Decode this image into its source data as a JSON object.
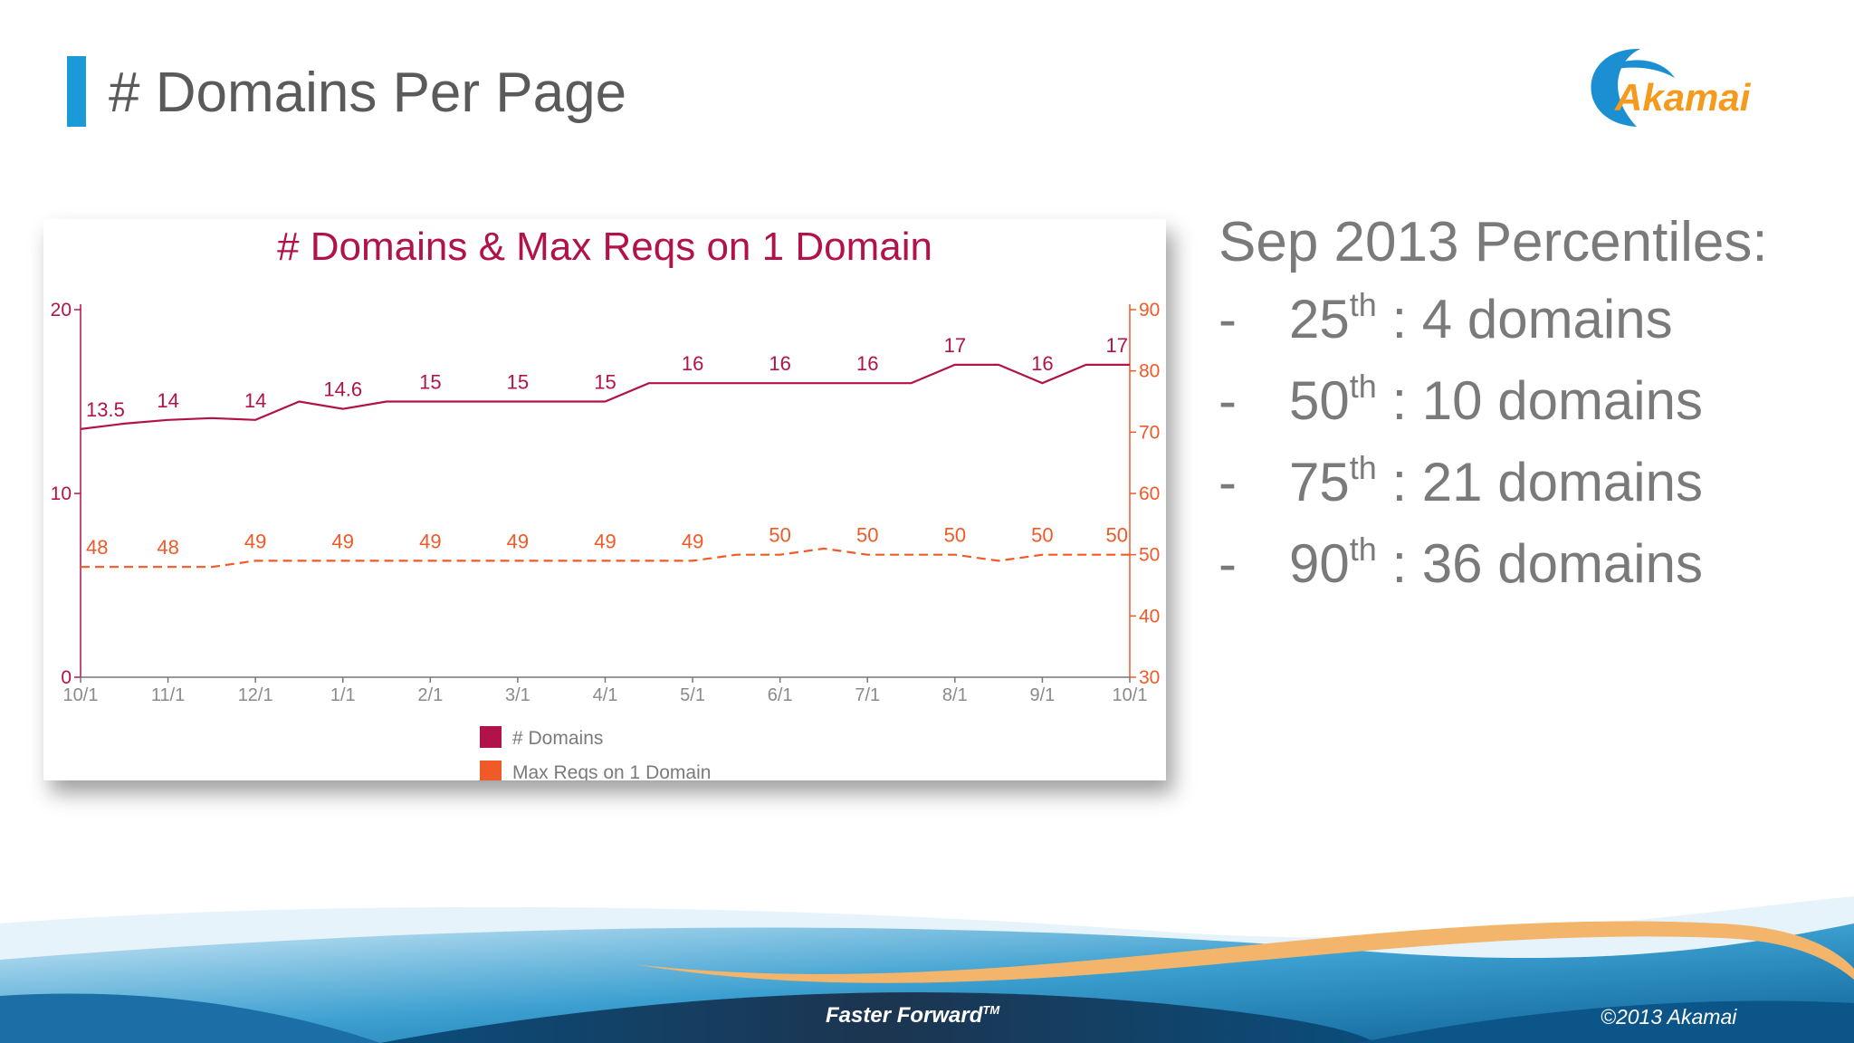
{
  "slide": {
    "title": "# Domains Per Page",
    "accent_color": "#1a9ad6",
    "logo_text": "Akamai",
    "logo_colors": {
      "swoosh": "#1b8fd2",
      "text": "#f49b1d"
    }
  },
  "percentiles": {
    "heading": "Sep 2013 Percentiles:",
    "items": [
      {
        "dash": "-",
        "ordinal_num": "25",
        "ordinal_suffix": "th",
        "rest": " : 4 domains"
      },
      {
        "dash": "-",
        "ordinal_num": "50",
        "ordinal_suffix": "th",
        "rest": " : 10 domains"
      },
      {
        "dash": "-",
        "ordinal_num": "75",
        "ordinal_suffix": "th",
        "rest": " : 21 domains"
      },
      {
        "dash": "-",
        "ordinal_num": "90",
        "ordinal_suffix": "th",
        "rest": " : 36 domains"
      }
    ]
  },
  "footer": {
    "tagline": "Faster Forward",
    "tagline_mark": "TM",
    "copyright": "©2013 Akamai"
  },
  "chart_data": {
    "type": "line",
    "title": "# Domains & Max Reqs on 1 Domain",
    "title_color": "#b2124a",
    "x": [
      "10/1",
      "11/1",
      "12/1",
      "1/1",
      "2/1",
      "3/1",
      "4/1",
      "5/1",
      "6/1",
      "7/1",
      "8/1",
      "9/1",
      "10/1"
    ],
    "left_axis": {
      "ticks": [
        "0",
        "10",
        "20"
      ],
      "ylim": [
        0,
        20
      ],
      "color": "#b2124a"
    },
    "right_axis": {
      "ticks": [
        "30",
        "40",
        "50",
        "60",
        "70",
        "80",
        "90"
      ],
      "ylim": [
        30,
        90
      ],
      "color": "#f05a28"
    },
    "legend_position": "bottom-center",
    "grid": false,
    "series": [
      {
        "name": "# Domains",
        "axis": "left",
        "color": "#b2124a",
        "style": "solid",
        "x": [
          0,
          0.5,
          1,
          1.5,
          2,
          2.5,
          3,
          3.5,
          4,
          5,
          6,
          6.5,
          7,
          8,
          9,
          9.5,
          10,
          10.5,
          11,
          11.5,
          12
        ],
        "values": [
          13.5,
          13.8,
          14,
          14.1,
          14,
          15,
          14.6,
          15,
          15,
          15,
          15,
          16,
          16,
          16,
          16,
          16,
          17,
          17,
          16,
          17,
          17
        ],
        "labels": [
          {
            "x": 0,
            "y": 13.5,
            "text": "13.5"
          },
          {
            "x": 1,
            "y": 14,
            "text": "14"
          },
          {
            "x": 2,
            "y": 14,
            "text": "14"
          },
          {
            "x": 3,
            "y": 14.6,
            "text": "14.6"
          },
          {
            "x": 4,
            "y": 15,
            "text": "15"
          },
          {
            "x": 5,
            "y": 15,
            "text": "15"
          },
          {
            "x": 6,
            "y": 15,
            "text": "15"
          },
          {
            "x": 7,
            "y": 16,
            "text": "16"
          },
          {
            "x": 8,
            "y": 16,
            "text": "16"
          },
          {
            "x": 9,
            "y": 16,
            "text": "16"
          },
          {
            "x": 10,
            "y": 17,
            "text": "17"
          },
          {
            "x": 11,
            "y": 16,
            "text": "16"
          },
          {
            "x": 12,
            "y": 17,
            "text": "17"
          }
        ]
      },
      {
        "name": "Max Reqs on 1 Domain",
        "axis": "right",
        "color": "#f05a28",
        "style": "dashed",
        "x": [
          0,
          1,
          1.5,
          2,
          3,
          4,
          5,
          6,
          7,
          7.5,
          8,
          8.5,
          9,
          9.5,
          10,
          10.5,
          11,
          11.5,
          12
        ],
        "values": [
          48,
          48,
          48,
          49,
          49,
          49,
          49,
          49,
          49,
          50,
          50,
          51,
          50,
          50,
          50,
          49,
          50,
          50,
          50
        ],
        "labels": [
          {
            "x": 0,
            "y": 48,
            "text": "48"
          },
          {
            "x": 1,
            "y": 48,
            "text": "48"
          },
          {
            "x": 2,
            "y": 49,
            "text": "49"
          },
          {
            "x": 3,
            "y": 49,
            "text": "49"
          },
          {
            "x": 4,
            "y": 49,
            "text": "49"
          },
          {
            "x": 5,
            "y": 49,
            "text": "49"
          },
          {
            "x": 6,
            "y": 49,
            "text": "49"
          },
          {
            "x": 7,
            "y": 49,
            "text": "49"
          },
          {
            "x": 8,
            "y": 50,
            "text": "50"
          },
          {
            "x": 9,
            "y": 50,
            "text": "50"
          },
          {
            "x": 10,
            "y": 50,
            "text": "50"
          },
          {
            "x": 11,
            "y": 50,
            "text": "50"
          },
          {
            "x": 12,
            "y": 50,
            "text": "50"
          }
        ]
      }
    ]
  }
}
